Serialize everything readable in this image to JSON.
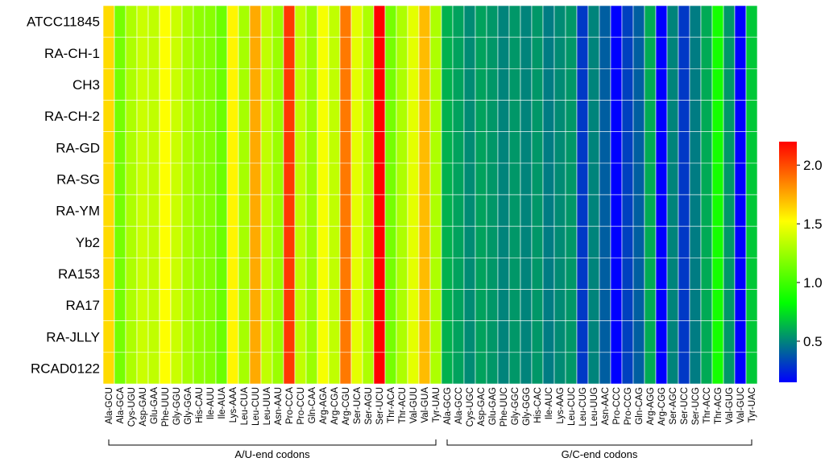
{
  "chart_data": {
    "type": "heatmap",
    "rows": [
      "ATCC11845",
      "RA-CH-1",
      "CH3",
      "RA-CH-2",
      "RA-GD",
      "RA-SG",
      "RA-YM",
      "Yb2",
      "RA153",
      "RA17",
      "RA-JLLY",
      "RCAD0122"
    ],
    "columns": [
      "Ala-GCU",
      "Ala-GCA",
      "Cys-UGU",
      "Asp-GAU",
      "Glu-GAA",
      "Phe-UUU",
      "Gly-GGU",
      "Gly-GGA",
      "His-CAU",
      "Ile-AUU",
      "Ile-AUA",
      "Lys-AAA",
      "Leu-CUA",
      "Leu-CUU",
      "Leu-UUA",
      "Asn-AAU",
      "Pro-CCA",
      "Pro-CCU",
      "Gln-CAA",
      "Arg-AGA",
      "Arg-CGA",
      "Arg-CGU",
      "Ser-UCA",
      "Ser-AGU",
      "Ser-UCU",
      "Thr-ACA",
      "Thr-ACU",
      "Val-GUU",
      "Val-GUA",
      "Tyr-UAU",
      "Ala-GCG",
      "Ala-GCC",
      "Cys-UGC",
      "Asp-GAC",
      "Glu-GAG",
      "Phe-UUC",
      "Gly-GGC",
      "Gly-GGG",
      "His-CAC",
      "Ile-AUC",
      "Lys-AAG",
      "Leu-CUC",
      "Leu-CUG",
      "Leu-UUG",
      "Asn-AAC",
      "Pro-CCC",
      "Pro-CCG",
      "Gln-CAG",
      "Arg-AGG",
      "Arg-CGG",
      "Ser-AGC",
      "Ser-UCC",
      "Ser-UCG",
      "Thr-ACC",
      "Thr-ACG",
      "Val-GUG",
      "Val-GUC",
      "Tyr-UAC"
    ],
    "column_values": [
      1.62,
      1.15,
      1.3,
      1.38,
      1.35,
      1.52,
      1.38,
      1.28,
      1.22,
      1.2,
      1.12,
      1.55,
      1.28,
      1.75,
      1.35,
      1.25,
      2.05,
      1.35,
      1.25,
      1.5,
      1.35,
      1.88,
      1.45,
      1.3,
      2.2,
      1.15,
      1.3,
      1.45,
      1.7,
      1.3,
      0.62,
      0.58,
      0.52,
      0.58,
      0.55,
      0.5,
      0.55,
      0.5,
      0.55,
      0.48,
      0.52,
      0.55,
      0.3,
      0.5,
      0.4,
      0.15,
      0.32,
      0.4,
      0.6,
      0.15,
      0.5,
      0.3,
      0.48,
      0.6,
      0.88,
      0.55,
      0.15,
      0.68
    ],
    "groups": [
      {
        "label": "A/U-end codons",
        "start": 0,
        "end": 29
      },
      {
        "label": "G/C-end codons",
        "start": 30,
        "end": 57
      }
    ],
    "colorbar": {
      "ticks": [
        "0.5",
        "1.0",
        "1.5",
        "2.0"
      ],
      "tick_values": [
        0.5,
        1.0,
        1.5,
        2.0
      ],
      "range": [
        0.15,
        2.2
      ]
    },
    "colors": {
      "low": "#0000ff",
      "mid_low": "#00ff00",
      "mid_high": "#ffff00",
      "high": "#ff0000",
      "grid": "#ffffff"
    }
  }
}
